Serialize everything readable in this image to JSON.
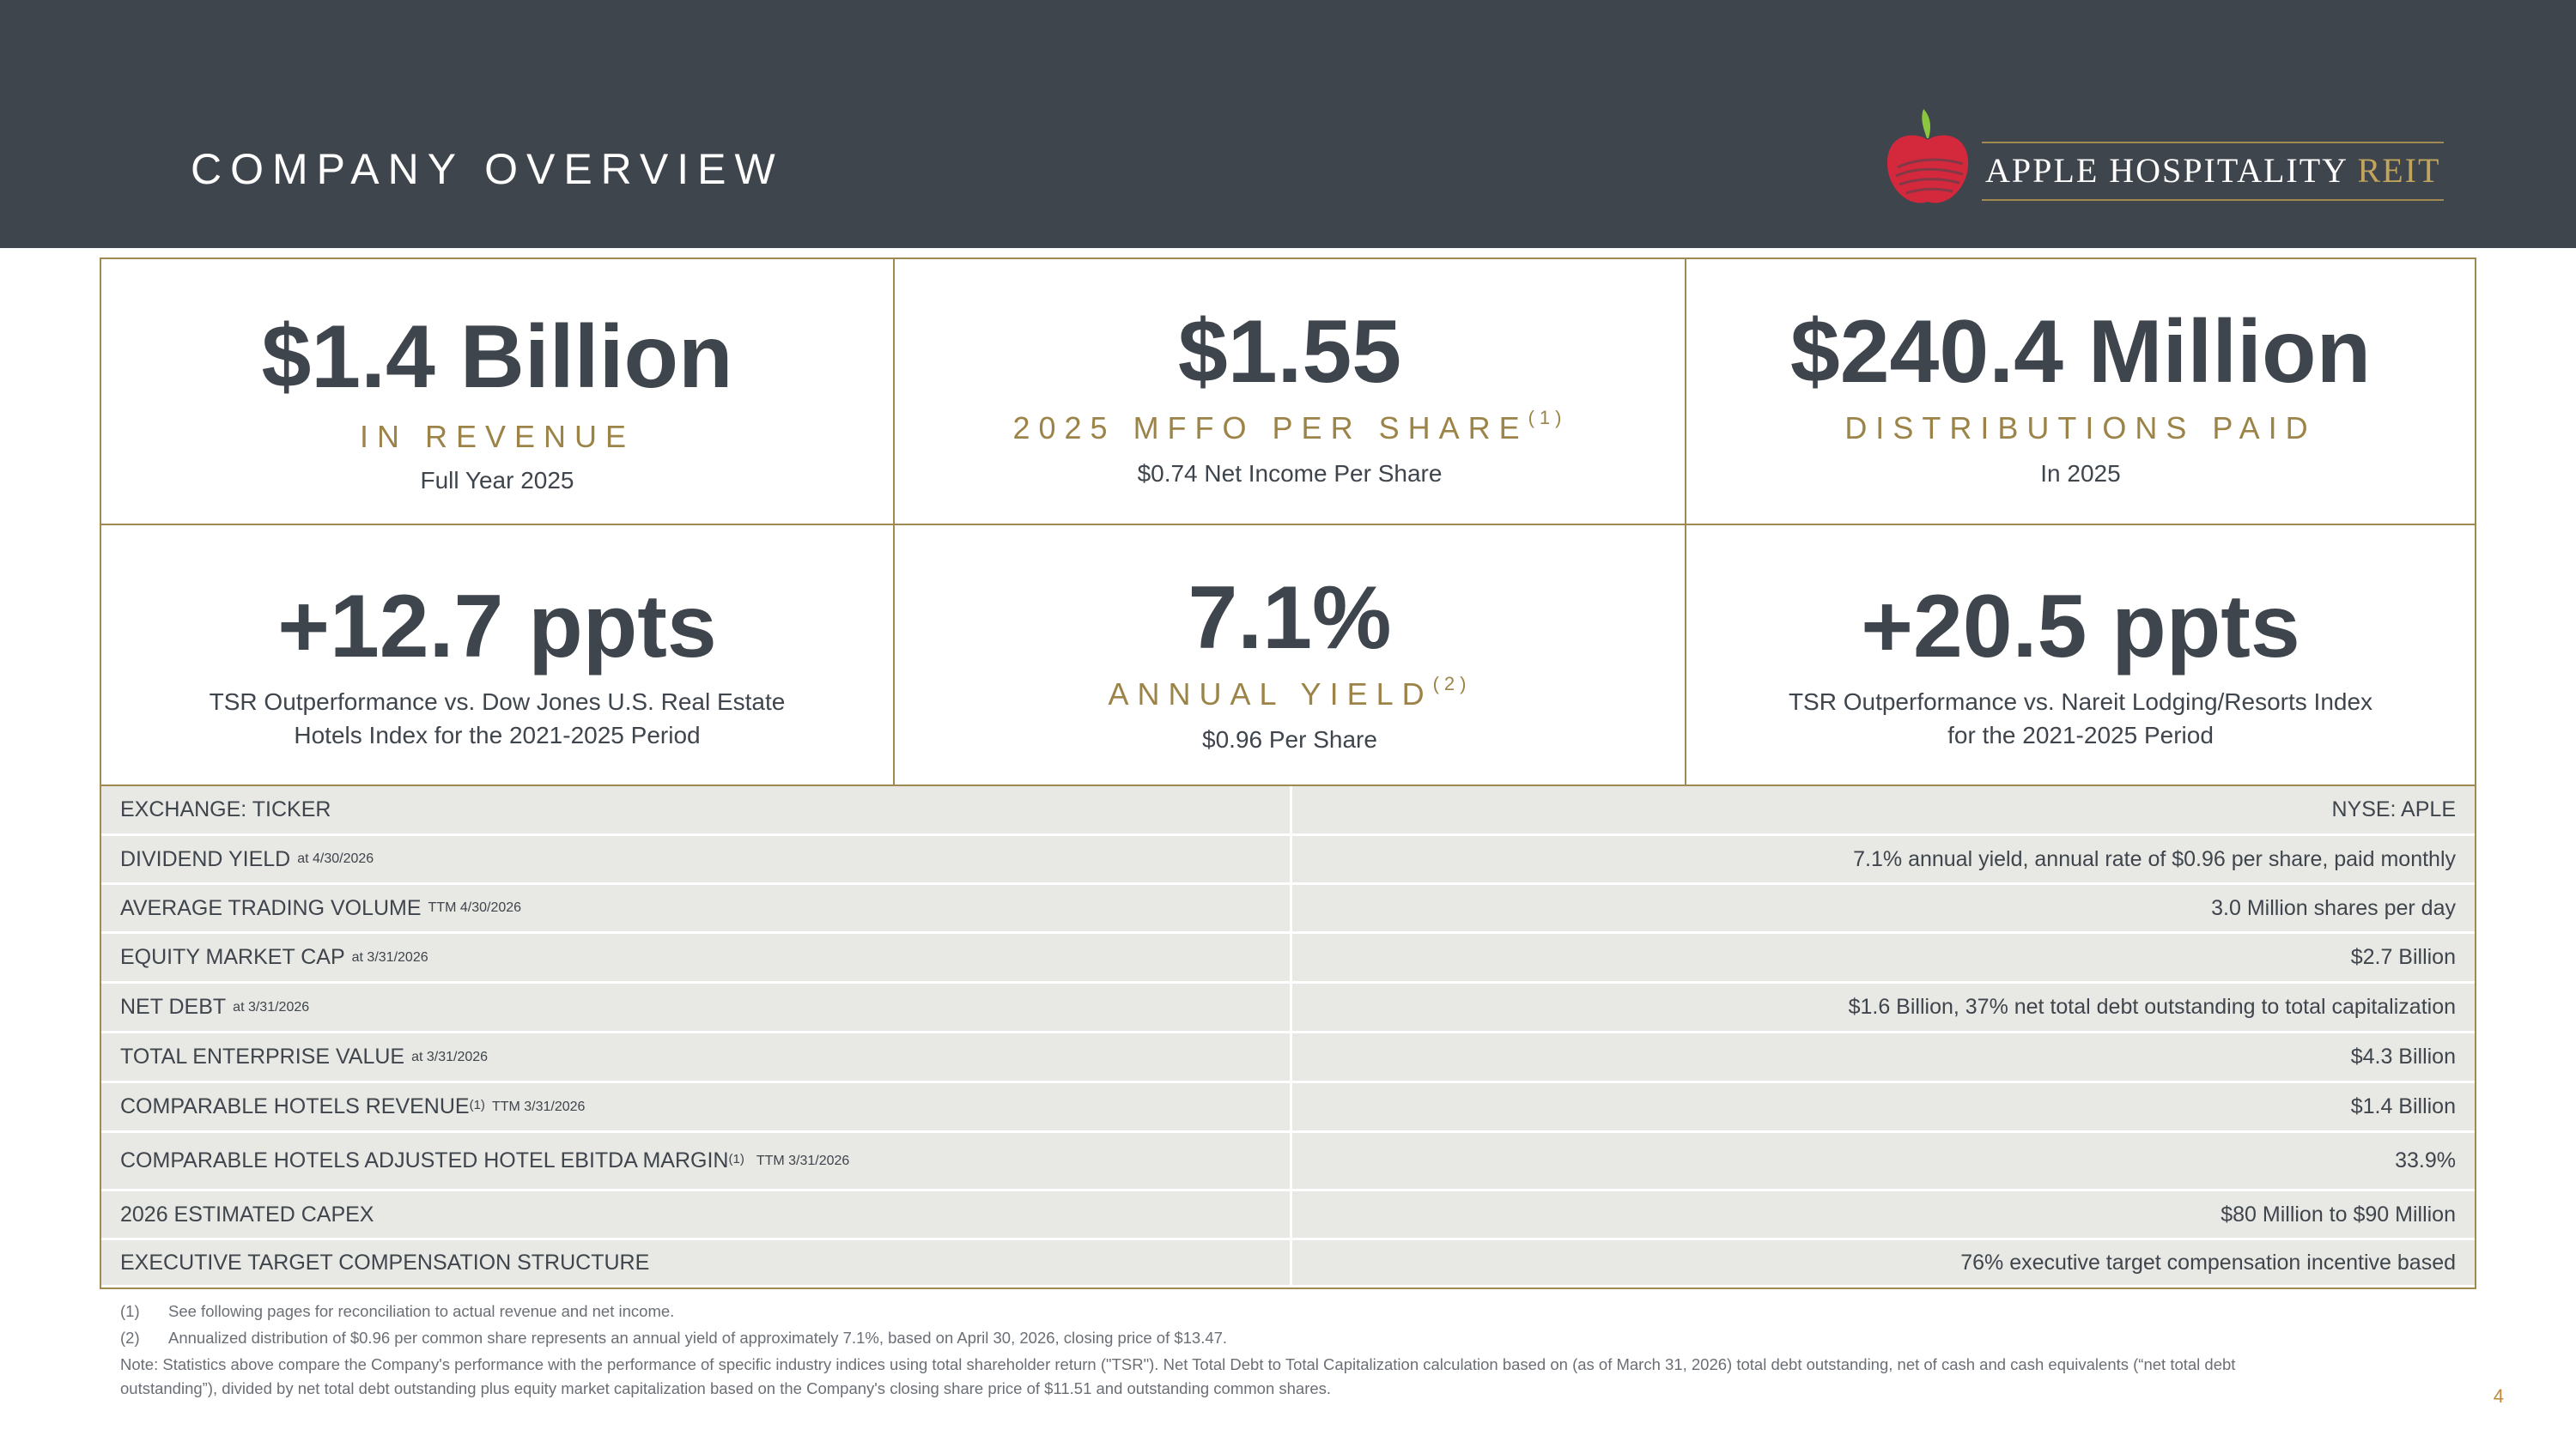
{
  "header": {
    "title": "COMPANY OVERVIEW",
    "logo_text_main": "APPLE HOSPITALITY",
    "logo_text_accent": "REIT"
  },
  "stats": [
    {
      "big": "$1.4 Billion",
      "caption": "IN REVENUE",
      "caption_sup": "",
      "sub1": "Full Year 2025",
      "sub2": ""
    },
    {
      "big": "$1.55",
      "caption": "2025 MFFO PER SHARE",
      "caption_sup": "(1)",
      "sub1": "$0.74 Net Income Per Share",
      "sub2": ""
    },
    {
      "big": "$240.4 Million",
      "caption": "DISTRIBUTIONS PAID",
      "caption_sup": "",
      "sub1": "In 2025",
      "sub2": ""
    },
    {
      "big": "+12.7 ppts",
      "caption": "",
      "caption_sup": "",
      "sub1": "TSR Outperformance vs. Dow Jones U.S. Real Estate",
      "sub2": "Hotels Index for the 2021-2025 Period"
    },
    {
      "big": "7.1%",
      "caption": "ANNUAL YIELD",
      "caption_sup": "(2)",
      "sub1": "$0.96 Per Share",
      "sub2": ""
    },
    {
      "big": "+20.5 ppts",
      "caption": "",
      "caption_sup": "",
      "sub1": "TSR Outperformance vs. Nareit Lodging/Resorts Index",
      "sub2": "for the 2021-2025 Period"
    }
  ],
  "table": [
    {
      "label": "EXCHANGE: TICKER",
      "sup": "",
      "note": "",
      "value": "NYSE: APLE"
    },
    {
      "label": "DIVIDEND YIELD",
      "sup": "",
      "note": "at 4/30/2026",
      "value": "7.1% annual yield, annual rate of $0.96 per share, paid monthly"
    },
    {
      "label": "AVERAGE TRADING VOLUME",
      "sup": "",
      "note": "TTM 4/30/2026",
      "value": "3.0 Million shares per day"
    },
    {
      "label": "EQUITY MARKET CAP",
      "sup": "",
      "note": "at 3/31/2026",
      "value": "$2.7 Billion"
    },
    {
      "label": "NET DEBT",
      "sup": "",
      "note": "at 3/31/2026",
      "value": "$1.6 Billion, 37% net total debt outstanding to total capitalization"
    },
    {
      "label": "TOTAL ENTERPRISE VALUE",
      "sup": "",
      "note": "at 3/31/2026",
      "value": "$4.3 Billion"
    },
    {
      "label": "COMPARABLE HOTELS REVENUE",
      "sup": "(1)",
      "note": "TTM 3/31/2026",
      "value": "$1.4 Billion"
    },
    {
      "label": "COMPARABLE HOTELS ADJUSTED HOTEL EBITDA MARGIN",
      "sup": "(1)",
      "note": "TTM 3/31/2026",
      "value": "33.9%"
    },
    {
      "label": "2026 ESTIMATED CAPEX",
      "sup": "",
      "note": "",
      "value": "$80 Million to $90 Million"
    },
    {
      "label": "EXECUTIVE TARGET COMPENSATION STRUCTURE",
      "sup": "",
      "note": "",
      "value": "76% executive target compensation incentive based"
    }
  ],
  "footnotes": [
    {
      "num": "(1)",
      "text": "See following pages for reconciliation to actual revenue and net income."
    },
    {
      "num": "(2)",
      "text": "Annualized distribution of $0.96 per common share represents an annual yield of approximately 7.1%, based on April 30, 2026, closing price of $13.47."
    }
  ],
  "note_line1": "Note: Statistics above compare the Company's performance with the performance of specific industry indices using total shareholder return (\"TSR\"). Net Total Debt to Total Capitalization calculation based on (as of March 31, 2026) total debt outstanding, net of cash and cash equivalents (“net total debt",
  "note_line2": "outstanding”), divided by net total debt outstanding plus equity market capitalization based on the Company's closing share price of $11.51 and outstanding common shares.",
  "page_number": "4",
  "colors": {
    "header_bg": "#3f454c",
    "accent_gold": "#a08a4f",
    "table_bg": "#e8e8e4",
    "logo_red": "#d4283c",
    "logo_leaf": "#8cc63f"
  }
}
